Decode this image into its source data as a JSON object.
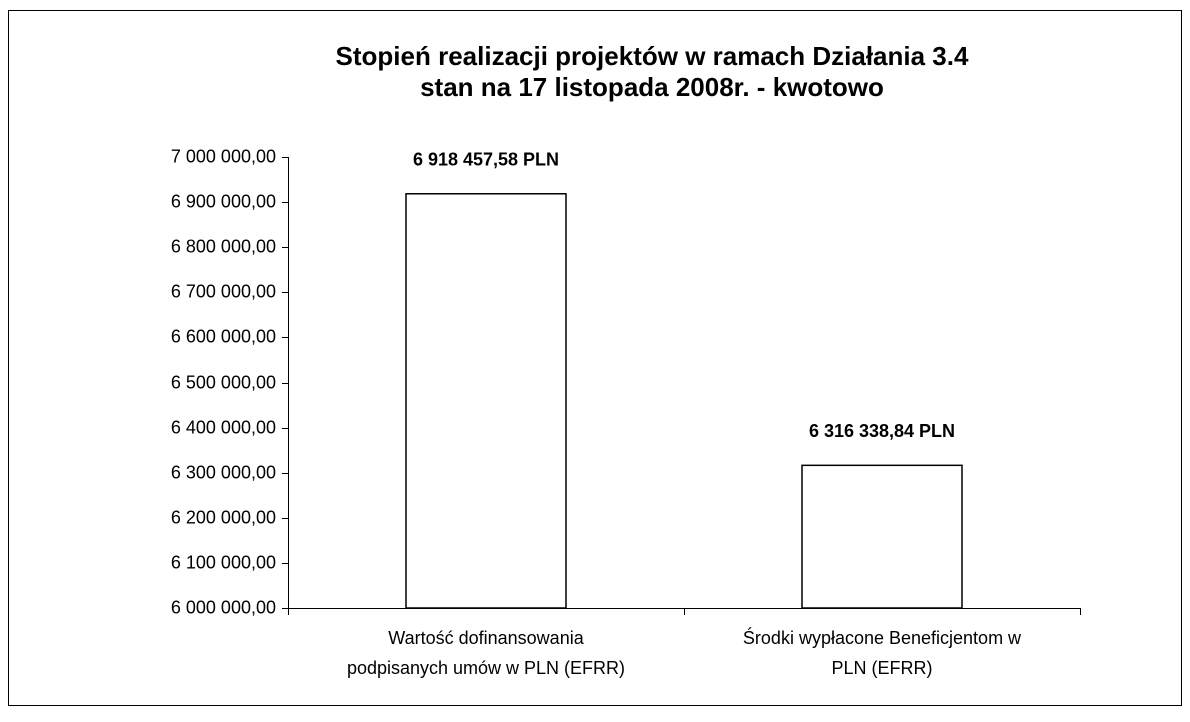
{
  "chart_data": {
    "type": "bar",
    "title": [
      "Stopień realizacji projektów w ramach Działania 3.4",
      "stan na 17 listopada 2008r. - kwotowo"
    ],
    "categories": [
      [
        "Wartość dofinansowania",
        "podpisanych umów w PLN (EFRR)"
      ],
      [
        "Środki wypłacone Beneficjentom w",
        "PLN (EFRR)"
      ]
    ],
    "values": [
      6918457.58,
      6316338.84
    ],
    "value_labels": [
      "6 918 457,58 PLN",
      "6 316 338,84 PLN"
    ],
    "color": "#ffffff",
    "ylim": [
      6000000,
      7000000
    ],
    "yticks": [
      {
        "value": 6000000,
        "label": "6 000 000,00"
      },
      {
        "value": 6100000,
        "label": "6 100 000,00"
      },
      {
        "value": 6200000,
        "label": "6 200 000,00"
      },
      {
        "value": 6300000,
        "label": "6 300 000,00"
      },
      {
        "value": 6400000,
        "label": "6 400 000,00"
      },
      {
        "value": 6500000,
        "label": "6 500 000,00"
      },
      {
        "value": 6600000,
        "label": "6 600 000,00"
      },
      {
        "value": 6700000,
        "label": "6 700 000,00"
      },
      {
        "value": 6800000,
        "label": "6 800 000,00"
      },
      {
        "value": 6900000,
        "label": "6 900 000,00"
      },
      {
        "value": 7000000,
        "label": "7 000 000,00"
      }
    ],
    "grid": false
  }
}
